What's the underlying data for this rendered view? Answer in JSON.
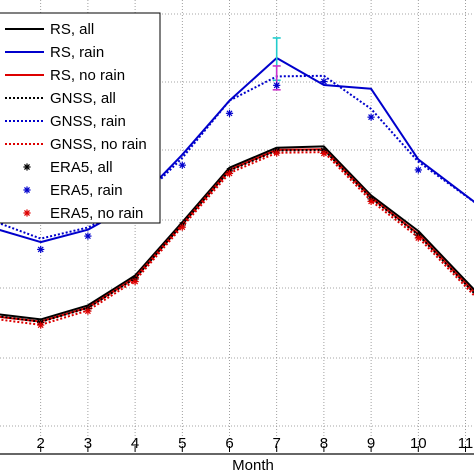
{
  "chart_data": {
    "type": "line",
    "title": "",
    "xlabel": "Month",
    "ylabel": "",
    "x_ticks": [
      "2",
      "3",
      "4",
      "5",
      "6",
      "7",
      "8",
      "9",
      "10",
      "11"
    ],
    "x_tick_partial_left": "",
    "xlim": [
      1,
      11.3
    ],
    "ylim": [
      0,
      1
    ],
    "grid": true,
    "legend_position": "top-left",
    "series": [
      {
        "name": "RS, all",
        "color": "#000000",
        "style": "solid",
        "marker": "none",
        "x": [
          1,
          2,
          3,
          4,
          5,
          6,
          7,
          8,
          9,
          10,
          11.3
        ],
        "y": [
          0.196,
          0.178,
          0.222,
          0.316,
          0.484,
          0.655,
          0.718,
          0.722,
          0.568,
          0.456,
          0.253
        ]
      },
      {
        "name": "RS, rain",
        "color": "#0000cc",
        "style": "solid",
        "marker": "none",
        "x": [
          1,
          2,
          3,
          4,
          5,
          6,
          7,
          8,
          9,
          10,
          11.3
        ],
        "y": [
          0.465,
          0.421,
          0.46,
          0.542,
          0.696,
          0.866,
          1.0,
          0.915,
          0.903,
          0.681,
          0.535
        ]
      },
      {
        "name": "RS, no rain",
        "color": "#dd0000",
        "style": "solid",
        "marker": "none",
        "x": [
          1,
          2,
          3,
          4,
          5,
          6,
          7,
          8,
          9,
          10,
          11.3
        ],
        "y": [
          0.188,
          0.171,
          0.215,
          0.309,
          0.477,
          0.648,
          0.711,
          0.713,
          0.561,
          0.447,
          0.245
        ]
      },
      {
        "name": "GNSS, all",
        "color": "#000000",
        "style": "dotted",
        "marker": "none",
        "x": [
          1,
          2,
          3,
          4,
          5,
          6,
          7,
          8,
          9,
          10,
          11.3
        ],
        "y": [
          0.19,
          0.17,
          0.214,
          0.307,
          0.477,
          0.646,
          0.709,
          0.711,
          0.559,
          0.444,
          0.242
        ]
      },
      {
        "name": "GNSS, rain",
        "color": "#0000cc",
        "style": "dotted",
        "marker": "none",
        "x": [
          1,
          2,
          3,
          4,
          5,
          6,
          7,
          8,
          9,
          10,
          11.3
        ],
        "y": [
          0.487,
          0.432,
          0.467,
          0.54,
          0.686,
          0.866,
          0.942,
          0.944,
          0.84,
          0.674,
          0.535
        ]
      },
      {
        "name": "GNSS, no rain",
        "color": "#dd0000",
        "style": "dotted",
        "marker": "none",
        "x": [
          1,
          2,
          3,
          4,
          5,
          6,
          7,
          8,
          9,
          10,
          11.3
        ],
        "y": [
          0.18,
          0.161,
          0.206,
          0.3,
          0.47,
          0.638,
          0.702,
          0.704,
          0.551,
          0.436,
          0.235
        ]
      },
      {
        "name": "ERA5, all",
        "color": "#000000",
        "style": "none",
        "marker": "star",
        "x": [
          2,
          3,
          4,
          5,
          6,
          7,
          8,
          9,
          10
        ],
        "y": [
          0.168,
          0.212,
          0.305,
          0.475,
          0.645,
          0.708,
          0.709,
          0.557,
          0.443
        ]
      },
      {
        "name": "ERA5, rain",
        "color": "#0000cc",
        "style": "none",
        "marker": "star",
        "x": [
          2,
          3,
          4,
          5,
          6,
          7,
          8,
          9,
          10
        ],
        "y": [
          0.398,
          0.44,
          0.521,
          0.663,
          0.826,
          0.914,
          0.926,
          0.814,
          0.648
        ]
      },
      {
        "name": "ERA5, no rain",
        "color": "#dd0000",
        "style": "none",
        "marker": "star",
        "x": [
          2,
          3,
          4,
          5,
          6,
          7,
          8,
          9,
          10
        ],
        "y": [
          0.16,
          0.204,
          0.297,
          0.468,
          0.637,
          0.701,
          0.7,
          0.549,
          0.434
        ]
      }
    ],
    "error_bars": [
      {
        "x": 7,
        "y_low": 0.93,
        "y_high": 1.063,
        "color": "#22cccc"
      },
      {
        "x": 7,
        "y_low": 0.9,
        "y_high": 0.975,
        "color": "#cc33cc"
      }
    ]
  }
}
